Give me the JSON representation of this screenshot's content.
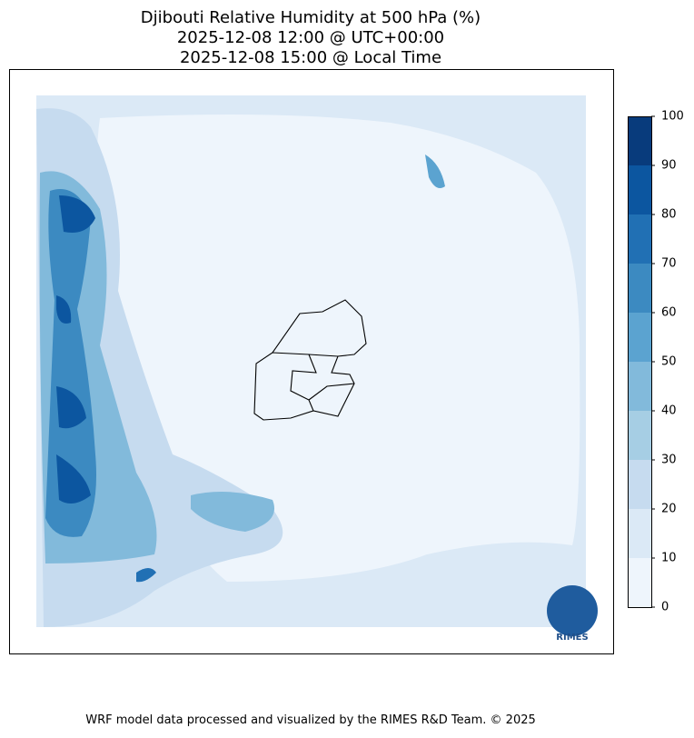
{
  "header": {
    "title_lines": [
      "Djibouti Relative Humidity at 500 hPa (%)",
      "2025-12-08 12:00 @ UTC+00:00",
      "2025-12-08 15:00 @ Local Time"
    ]
  },
  "colorbar": {
    "ticks": [
      0,
      10,
      20,
      30,
      40,
      50,
      60,
      70,
      80,
      90,
      100
    ],
    "colors": [
      "#eef5fc",
      "#dbe9f6",
      "#c6dbef",
      "#a6cee4",
      "#82badb",
      "#5ba3d0",
      "#3c8ac1",
      "#2170b4",
      "#0c56a0",
      "#083b7c"
    ]
  },
  "logo": {
    "text": "RIMES"
  },
  "footer": {
    "text": "WRF model data processed and visualized by the RIMES R&D Team. © 2025"
  }
}
